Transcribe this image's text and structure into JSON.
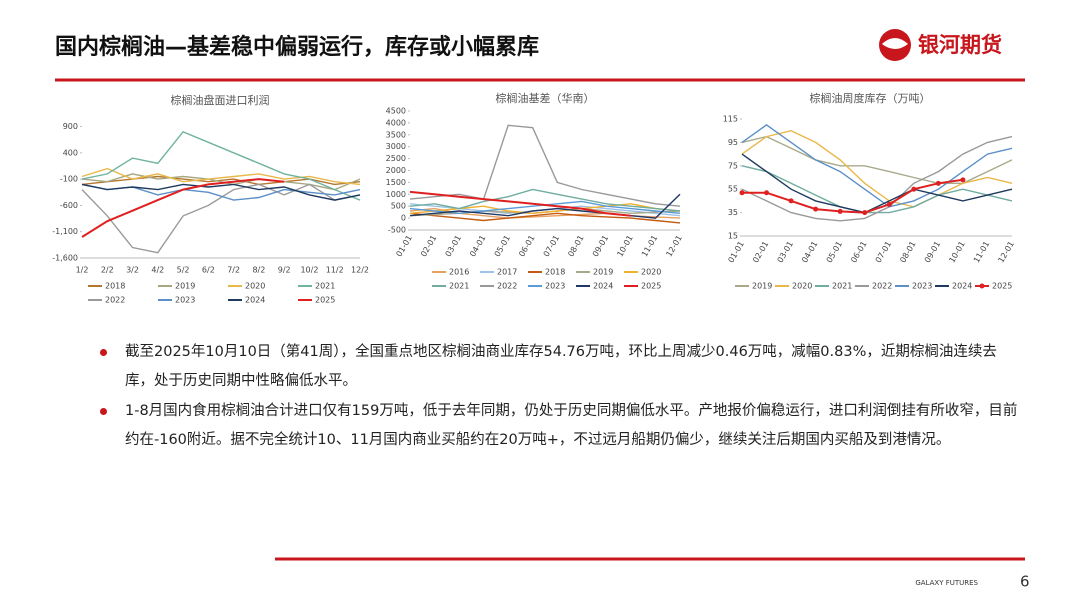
{
  "header": {
    "title": "国内棕榈油—基差稳中偏弱运行，库存或小幅累库",
    "logo": "银河期货"
  },
  "chart_data": [
    {
      "type": "line",
      "title": "棕榈油盘面进口利润",
      "categories": [
        "1/2",
        "2/2",
        "3/2",
        "4/2",
        "5/2",
        "6/2",
        "7/2",
        "8/2",
        "9/2",
        "10/2",
        "11/2",
        "12/2"
      ],
      "ylim": [
        -1600,
        1100
      ],
      "yticks": [
        {
          "value": -1600,
          "label": "-1,600"
        },
        {
          "value": -1100,
          "label": "-1,100"
        },
        -600,
        -100,
        400,
        900
      ],
      "series": [
        {
          "name": "2018",
          "color": "#b5762f",
          "values": [
            -200,
            -150,
            -100,
            -50,
            -100,
            -150,
            -100,
            -200,
            -150,
            -100,
            -200,
            -150
          ]
        },
        {
          "name": "2019",
          "color": "#a8a880",
          "values": [
            -100,
            -150,
            0,
            -100,
            -50,
            -100,
            -200,
            -100,
            -150,
            -200,
            -300,
            -100
          ]
        },
        {
          "name": "2020",
          "color": "#e8b84a",
          "values": [
            -50,
            100,
            -100,
            0,
            -150,
            -100,
            -50,
            0,
            -100,
            -50,
            -150,
            -200
          ]
        },
        {
          "name": "2021",
          "color": "#6fb3a0",
          "values": [
            -100,
            0,
            300,
            200,
            800,
            600,
            400,
            200,
            0,
            -100,
            -300,
            -500
          ]
        },
        {
          "name": "2022",
          "color": "#9a9a9a",
          "values": [
            -300,
            -800,
            -1400,
            -1500,
            -800,
            -600,
            -300,
            -200,
            -400,
            -200,
            -500,
            -400
          ]
        },
        {
          "name": "2023",
          "color": "#5b8fc7",
          "values": [
            -200,
            -300,
            -250,
            -400,
            -300,
            -350,
            -500,
            -450,
            -300,
            -350,
            -400,
            -300
          ]
        },
        {
          "name": "2024",
          "color": "#1f3a5f",
          "values": [
            -200,
            -300,
            -250,
            -300,
            -200,
            -250,
            -200,
            -300,
            -250,
            -400,
            -500,
            -400
          ]
        },
        {
          "name": "2025",
          "color": "#e02020",
          "values": [
            -1200,
            -900,
            -700,
            -500,
            -300,
            -200,
            -150,
            -100,
            -150,
            null,
            null,
            null
          ]
        }
      ]
    },
    {
      "type": "line",
      "title": "棕榈油基差（华南）",
      "categories": [
        "01-01",
        "02-01",
        "03-01",
        "04-01",
        "05-01",
        "06-01",
        "07-01",
        "08-01",
        "09-01",
        "10-01",
        "11-01",
        "12-01"
      ],
      "ylim": [
        -500,
        4500
      ],
      "yticks": [
        -500,
        0,
        500,
        1000,
        1500,
        2000,
        2500,
        3000,
        3500,
        4000,
        4500
      ],
      "series": [
        {
          "name": "2016",
          "color": "#e8a060",
          "values": [
            300,
            400,
            200,
            100,
            0,
            50,
            100,
            150,
            200,
            100,
            50,
            0
          ]
        },
        {
          "name": "2017",
          "color": "#9dc3e6",
          "values": [
            600,
            500,
            400,
            300,
            200,
            300,
            400,
            500,
            400,
            300,
            200,
            100
          ]
        },
        {
          "name": "2018",
          "color": "#c55a11",
          "values": [
            200,
            100,
            0,
            -100,
            0,
            100,
            200,
            100,
            50,
            0,
            -100,
            -200
          ]
        },
        {
          "name": "2019",
          "color": "#a9a98a",
          "values": [
            100,
            150,
            200,
            300,
            250,
            200,
            300,
            400,
            300,
            200,
            250,
            300
          ]
        },
        {
          "name": "2020",
          "color": "#f0b030",
          "values": [
            200,
            300,
            400,
            500,
            300,
            200,
            300,
            400,
            500,
            600,
            400,
            300
          ]
        },
        {
          "name": "2021",
          "color": "#70ad9f",
          "values": [
            500,
            600,
            400,
            700,
            900,
            1200,
            1000,
            800,
            600,
            500,
            400,
            300
          ]
        },
        {
          "name": "2022",
          "color": "#999999",
          "values": [
            800,
            900,
            1000,
            800,
            3900,
            3800,
            1500,
            1200,
            1000,
            800,
            600,
            500
          ]
        },
        {
          "name": "2023",
          "color": "#5b9bd5",
          "values": [
            400,
            300,
            200,
            300,
            400,
            500,
            600,
            700,
            500,
            400,
            300,
            200
          ]
        },
        {
          "name": "2024",
          "color": "#203864",
          "values": [
            100,
            200,
            300,
            200,
            100,
            300,
            400,
            300,
            200,
            100,
            0,
            1000
          ]
        },
        {
          "name": "2025",
          "color": "#e02020",
          "values": [
            1100,
            1000,
            900,
            800,
            700,
            600,
            500,
            400,
            200,
            100,
            null,
            null
          ]
        }
      ]
    },
    {
      "type": "line",
      "title": "棕榈油周度库存（万吨）",
      "categories": [
        "01-01",
        "02-01",
        "03-01",
        "04-01",
        "05-01",
        "06-01",
        "07-01",
        "08-01",
        "09-01",
        "10-01",
        "11-01",
        "12-01"
      ],
      "ylim": [
        15,
        115
      ],
      "yticks": [
        15,
        35,
        55,
        75,
        95,
        115
      ],
      "series": [
        {
          "name": "2019",
          "color": "#a9a98a",
          "values": [
            95,
            100,
            90,
            80,
            75,
            75,
            70,
            65,
            60,
            60,
            70,
            80
          ]
        },
        {
          "name": "2020",
          "color": "#e8b84a",
          "values": [
            85,
            100,
            105,
            95,
            80,
            60,
            45,
            40,
            50,
            60,
            65,
            60
          ]
        },
        {
          "name": "2021",
          "color": "#70ad9f",
          "values": [
            75,
            70,
            60,
            50,
            40,
            35,
            35,
            40,
            50,
            55,
            50,
            45
          ]
        },
        {
          "name": "2022",
          "color": "#999999",
          "values": [
            55,
            45,
            35,
            30,
            28,
            30,
            40,
            60,
            70,
            85,
            95,
            100
          ]
        },
        {
          "name": "2023",
          "color": "#5b8fc7",
          "values": [
            95,
            110,
            95,
            80,
            70,
            55,
            40,
            45,
            55,
            70,
            85,
            90
          ]
        },
        {
          "name": "2024",
          "color": "#1f3a5f",
          "values": [
            85,
            70,
            55,
            45,
            40,
            35,
            45,
            55,
            50,
            45,
            50,
            55
          ]
        },
        {
          "name": "2025",
          "color": "#e02020",
          "markers": true,
          "values": [
            52,
            52,
            45,
            38,
            36,
            35,
            42,
            55,
            60,
            63,
            null,
            null
          ]
        }
      ]
    }
  ],
  "bullets": [
    "截至2025年10月10日（第41周），全国重点地区棕榈油商业库存54.76万吨，环比上周减少0.46万吨，减幅0.83%，近期棕榈油连续去库，处于历史同期中性略偏低水平。",
    "1-8月国内食用棕榈油合计进口仅有159万吨，低于去年同期，仍处于历史同期偏低水平。产地报价偏稳运行，进口利润倒挂有所收窄，目前约在-160附近。据不完全统计10、11月国内商业买船约在20万吨+，不过远月船期仍偏少，继续关注后期国内买船及到港情况。"
  ],
  "footer": {
    "brand": "GALAXY FUTURES",
    "page": "6"
  }
}
